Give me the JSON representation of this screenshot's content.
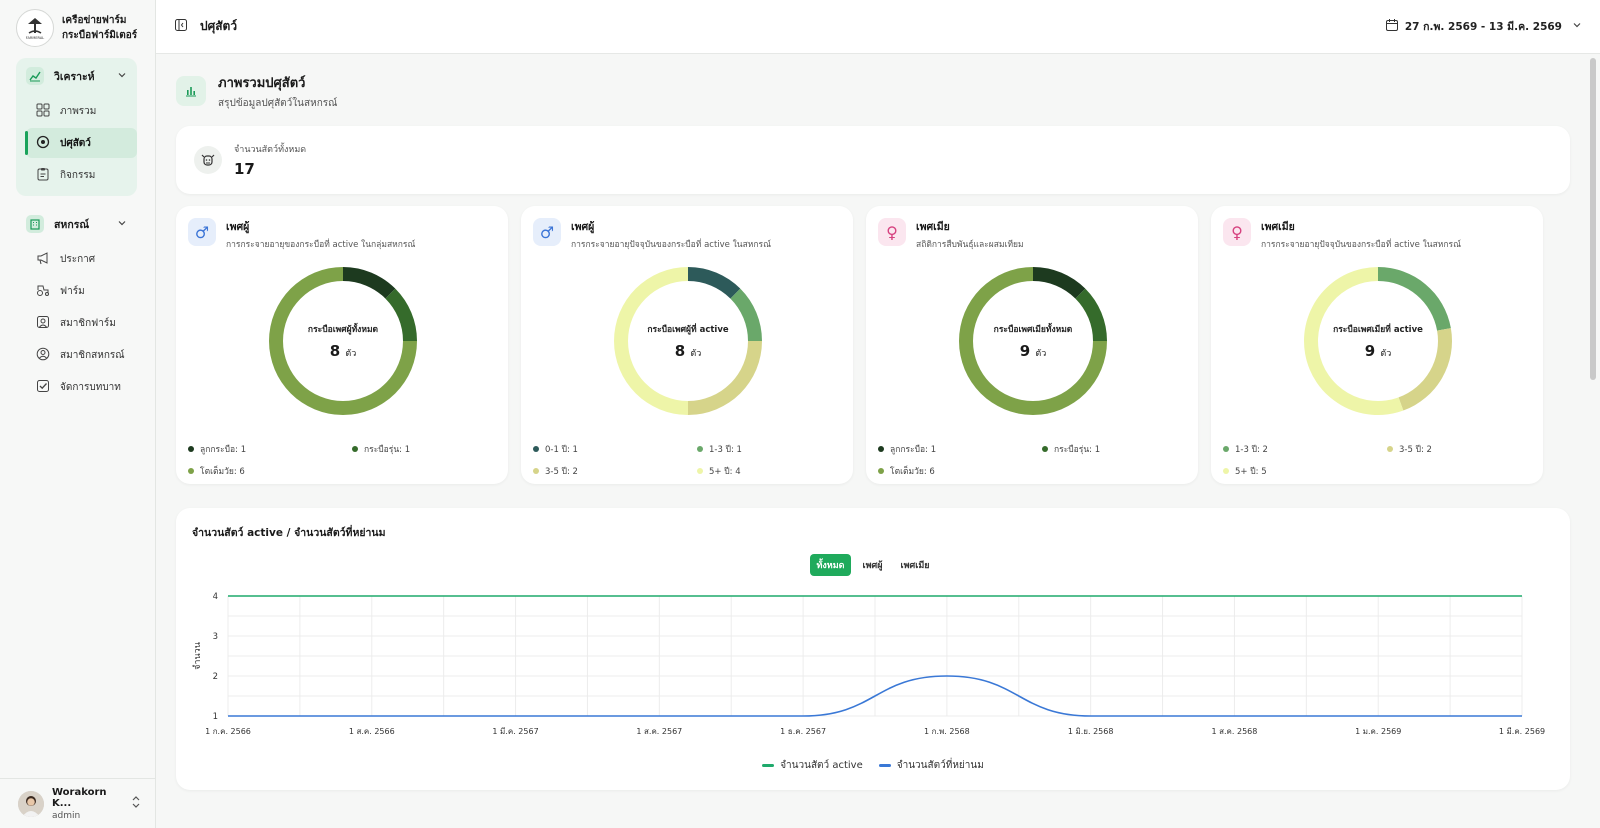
{
  "brand": {
    "name_line1": "เครือข่ายฟาร์ม",
    "name_line2": "กระบือฟาร์มิเตอร์",
    "logo_text": "FARMERAL"
  },
  "sidebar": {
    "analysis": {
      "label": "วิเคราะห์",
      "items": [
        {
          "label": "ภาพรวม"
        },
        {
          "label": "ปศุสัตว์"
        },
        {
          "label": "กิจกรรม"
        }
      ]
    },
    "coop": {
      "label": "สหกรณ์",
      "items": [
        {
          "label": "ประกาศ"
        },
        {
          "label": "ฟาร์ม"
        },
        {
          "label": "สมาชิกฟาร์ม"
        },
        {
          "label": "สมาชิกสหกรณ์"
        },
        {
          "label": "จัดการบทบาท"
        }
      ]
    }
  },
  "user": {
    "name": "Worakorn K...",
    "role": "admin"
  },
  "topbar": {
    "title": "ปศุสัตว์",
    "date_range": "27 ก.พ. 2569 - 13 มี.ค. 2569"
  },
  "section": {
    "title": "ภาพรวมปศุสัตว์",
    "subtitle": "สรุปข้อมูลปศุสัตว์ในสหกรณ์"
  },
  "total": {
    "label": "จำนวนสัตว์ทั้งหมด",
    "value": "17"
  },
  "donuts": [
    {
      "title": "เพศผู้",
      "subtitle": "การกระจายอายุของกระบือที่ active ในกลุ่มสหกรณ์",
      "gender": "male",
      "center_label": "กระบือเพศผู้ทั้งหมด",
      "center_value": "8",
      "unit": "ตัว",
      "segments": [
        {
          "label": "ลูกกระบือ: 1",
          "value": 1,
          "color": "#1d3a1f"
        },
        {
          "label": "กระบือรุ่น: 1",
          "value": 1,
          "color": "#356b2b"
        },
        {
          "label": "โตเต็มวัย: 6",
          "value": 6,
          "color": "#7ea248"
        }
      ]
    },
    {
      "title": "เพศผู้",
      "subtitle": "การกระจายอายุปัจจุบันของกระบือที่ active ในสหกรณ์",
      "gender": "male",
      "center_label": "กระบือเพศผู้ที่ active",
      "center_value": "8",
      "unit": "ตัว",
      "segments": [
        {
          "label": "0-1 ปี: 1",
          "value": 1,
          "color": "#2d5a5a"
        },
        {
          "label": "1-3 ปี: 1",
          "value": 1,
          "color": "#6aa86a"
        },
        {
          "label": "3-5 ปี: 2",
          "value": 2,
          "color": "#d6d48a"
        },
        {
          "label": "5+ ปี: 4",
          "value": 4,
          "color": "#eef5a8"
        }
      ]
    },
    {
      "title": "เพศเมีย",
      "subtitle": "สถิติการสืบพันธุ์และผสมเทียม",
      "gender": "female",
      "center_label": "กระบือเพศเมียทั้งหมด",
      "center_value": "9",
      "unit": "ตัว",
      "segments": [
        {
          "label": "ลูกกระบือ: 1",
          "value": 1,
          "color": "#1d3a1f"
        },
        {
          "label": "กระบือรุ่น: 1",
          "value": 1,
          "color": "#356b2b"
        },
        {
          "label": "โตเต็มวัย: 6",
          "value": 6,
          "color": "#7ea248"
        }
      ]
    },
    {
      "title": "เพศเมีย",
      "subtitle": "การกระจายอายุปัจจุบันของกระบือที่ active ในสหกรณ์",
      "gender": "female",
      "center_label": "กระบือเพศเมียที่ active",
      "center_value": "9",
      "unit": "ตัว",
      "segments": [
        {
          "label": "1-3 ปี: 2",
          "value": 2,
          "color": "#6aa86a"
        },
        {
          "label": "3-5 ปี: 2",
          "value": 2,
          "color": "#d6d48a"
        },
        {
          "label": "5+ ปี: 5",
          "value": 5,
          "color": "#eef5a8"
        }
      ]
    }
  ],
  "chart": {
    "title": "จำนวนสัตว์ active / จำนวนสัตว์ที่หย่านม",
    "filters": [
      {
        "label": "ทั้งหมด",
        "active": true
      },
      {
        "label": "เพศผู้",
        "active": false
      },
      {
        "label": "เพศเมีย",
        "active": false
      }
    ]
  },
  "chart_data": {
    "type": "line",
    "title": "จำนวนสัตว์ active / จำนวนสัตว์ที่หย่านม",
    "ylabel": "จำนวน",
    "xlabel": "",
    "x": [
      "1 ก.ค. 2566",
      "1 ส.ค. 2566",
      "1 มี.ค. 2567",
      "1 ส.ค. 2567",
      "1 ธ.ค. 2567",
      "1 ก.พ. 2568",
      "1 มิ.ย. 2568",
      "1 ส.ค. 2568",
      "1 ม.ค. 2569",
      "1 มี.ค. 2569"
    ],
    "yticks": [
      1,
      2,
      3,
      4
    ],
    "ylim": [
      1,
      4
    ],
    "series": [
      {
        "name": "จำนวนสัตว์ active",
        "color": "#1faa6c",
        "values": [
          4,
          4,
          4,
          4,
          4,
          4,
          4,
          4,
          4,
          4
        ]
      },
      {
        "name": "จำนวนสัตว์ที่หย่านม",
        "color": "#3a78d6",
        "values": [
          1,
          1,
          1,
          1,
          1,
          2,
          1,
          1,
          1,
          1
        ]
      }
    ],
    "grid": true,
    "legend": "bottom"
  }
}
